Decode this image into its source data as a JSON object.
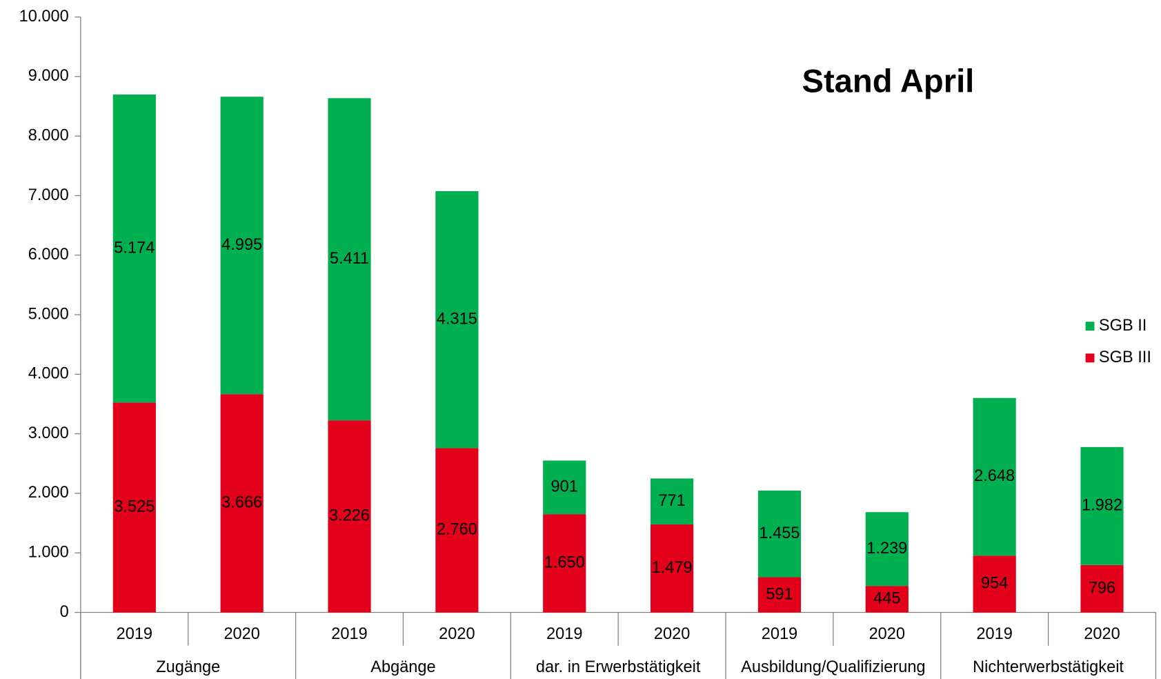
{
  "chart_data": {
    "type": "stacked_bar",
    "title": "Stand April",
    "categories": [
      "2019",
      "2020",
      "2019",
      "2020",
      "2019",
      "2020",
      "2019",
      "2020",
      "2019",
      "2020"
    ],
    "groups": [
      "Zugänge",
      "Abgänge",
      "dar. in Erwerbstätigkeit",
      "Ausbildung/Qualifizierung",
      "Nichterwerbstätigkeit"
    ],
    "series": [
      {
        "name": "SGB III",
        "color": "#e2001a",
        "values": [
          3525,
          3666,
          3226,
          2760,
          1650,
          1479,
          591,
          445,
          954,
          796
        ],
        "value_labels": [
          "3.525",
          "3.666",
          "3.226",
          "2.760",
          "1.650",
          "1.479",
          "591",
          "445",
          "954",
          "796"
        ]
      },
      {
        "name": "SGB II",
        "color": "#00b050",
        "values": [
          5174,
          4995,
          5411,
          4315,
          901,
          771,
          1455,
          1239,
          2648,
          1982
        ],
        "value_labels": [
          "5.174",
          "4.995",
          "5.411",
          "4.315",
          "901",
          "771",
          "1.455",
          "1.239",
          "2.648",
          "1.982"
        ]
      }
    ],
    "ylim": [
      0,
      10000
    ],
    "yticks": [
      0,
      {
        "value": 1000,
        "label": "1.000"
      },
      {
        "value": 2000,
        "label": "2.000"
      },
      {
        "value": 3000,
        "label": "3.000"
      },
      {
        "value": 4000,
        "label": "4.000"
      },
      {
        "value": 5000,
        "label": "5.000"
      },
      {
        "value": 6000,
        "label": "6.000"
      },
      {
        "value": 7000,
        "label": "7.000"
      },
      {
        "value": 8000,
        "label": "8.000"
      },
      {
        "value": 9000,
        "label": "9.000"
      },
      {
        "value": 10000,
        "label": "10.000"
      }
    ],
    "legend": "right",
    "grid": false
  }
}
